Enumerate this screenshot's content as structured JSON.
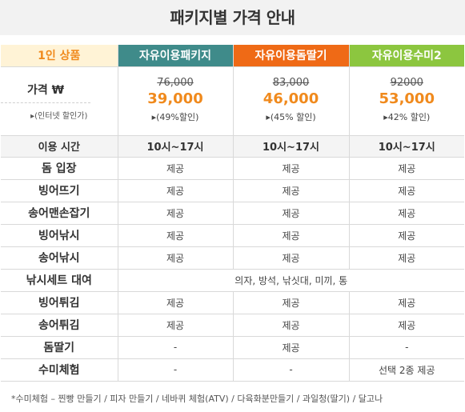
{
  "title": "패키지별 가격 안내",
  "table": {
    "header": [
      "1인 상품",
      "자유이용패키지",
      "자유이용돔딸기",
      "자유이용수미2"
    ],
    "header_colors": [
      "#fff3d6",
      "#3f8b8a",
      "#ef6a16",
      "#8cc63f"
    ],
    "price_row": {
      "label": "가격 ₩",
      "sublabel": "▸(인터넷 할인가)",
      "prices": [
        {
          "old": "76,000",
          "new": "39,000",
          "discount": "▸(49%할인)"
        },
        {
          "old": "83,000",
          "new": "46,000",
          "discount": "▸(45% 할인)"
        },
        {
          "old": "92000",
          "new": "53,000",
          "discount": "▸42% 할인)"
        }
      ]
    },
    "time_row": {
      "label": "이용 시간",
      "values": [
        "10시~17시",
        "10시~17시",
        "10시~17시"
      ]
    },
    "rows": [
      {
        "label": "돔 입장",
        "values": [
          "제공",
          "제공",
          "제공"
        ]
      },
      {
        "label": "빙어뜨기",
        "values": [
          "제공",
          "제공",
          "제공"
        ]
      },
      {
        "label": "송어맨손잡기",
        "values": [
          "제공",
          "제공",
          "제공"
        ]
      },
      {
        "label": "빙어낚시",
        "values": [
          "제공",
          "제공",
          "제공"
        ]
      },
      {
        "label": "송어낚시",
        "values": [
          "제공",
          "제공",
          "제공"
        ]
      },
      {
        "label": "낚시세트 대여",
        "merged": "의자, 방석, 낚싯대, 미끼, 통"
      },
      {
        "label": "빙어튀김",
        "values": [
          "제공",
          "제공",
          "제공"
        ]
      },
      {
        "label": "송어튀김",
        "values": [
          "제공",
          "제공",
          "제공"
        ]
      },
      {
        "label": "돔딸기",
        "values": [
          "-",
          "제공",
          "-"
        ]
      },
      {
        "label": "수미체험",
        "values": [
          "-",
          "-",
          "선택 2종 제공"
        ]
      }
    ]
  },
  "footnote": "*수미체험 – 찐빵 만들기 / 피자 만들기 / 네바퀴 체험(ATV) / 다육화분만들기 / 과일청(딸기) / 달고나"
}
